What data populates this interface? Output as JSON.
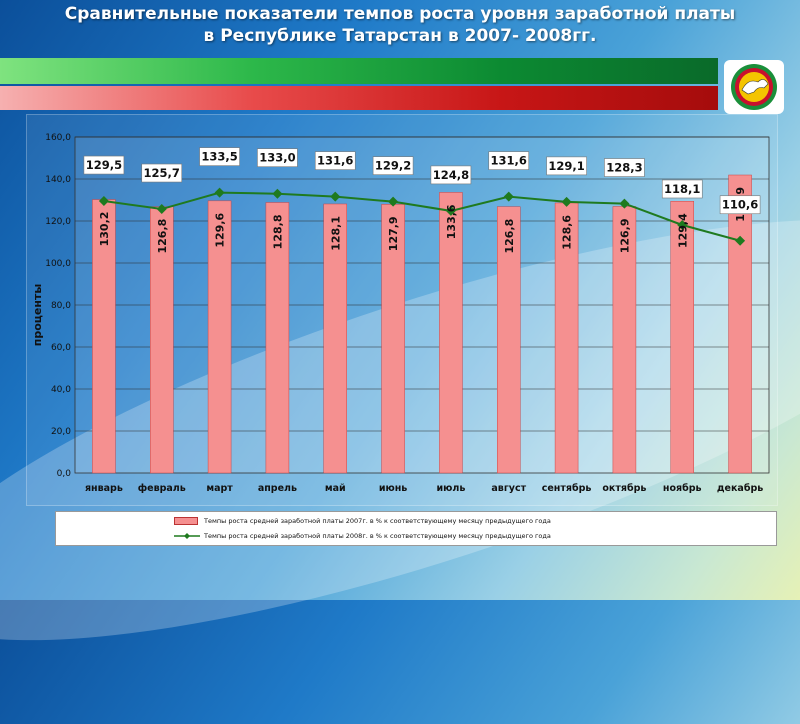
{
  "title": {
    "line1": "Сравнительные показатели темпов роста  уровня заработной платы",
    "line2": "в Республике Татарстан в 2007- 2008гг."
  },
  "emblem": {
    "icon": "tatarstan-emblem-icon"
  },
  "chart_data": {
    "type": "bar",
    "categories": [
      "январь",
      "февраль",
      "март",
      "апрель",
      "май",
      "июнь",
      "июль",
      "август",
      "сентябрь",
      "октябрь",
      "ноябрь",
      "декабрь"
    ],
    "ylabel": "проценты",
    "xlabel": "",
    "ylim": [
      0,
      160
    ],
    "yticks": [
      "0,0",
      "20,0",
      "40,0",
      "60,0",
      "80,0",
      "100,0",
      "120,0",
      "140,0",
      "160,0"
    ],
    "grid": true,
    "legend_position": "bottom",
    "series": [
      {
        "name": "Темпы роста средней заработной платы 2007г.  в %  к соответствующему  месяцу предыдущего года",
        "type": "bar",
        "color": "#f59090",
        "values": [
          130.2,
          126.8,
          129.6,
          128.8,
          128.1,
          127.9,
          133.6,
          126.8,
          128.6,
          126.9,
          129.4,
          141.9
        ],
        "labels": [
          "130,2",
          "126,8",
          "129,6",
          "128,8",
          "128,1",
          "127,9",
          "133,6",
          "126,8",
          "128,6",
          "126,9",
          "129,4",
          "141,9"
        ]
      },
      {
        "name": "Темпы роста средней заработной платы 2008г.  в %  к соответствующему  месяцу предыдущего года",
        "type": "line",
        "color": "#1f7a1f",
        "values": [
          129.5,
          125.7,
          133.5,
          133.0,
          131.6,
          129.2,
          124.8,
          131.6,
          129.1,
          128.3,
          118.1,
          110.6
        ],
        "labels": [
          "129,5",
          "125,7",
          "133,5",
          "133,0",
          "131,6",
          "129,2",
          "124,8",
          "131,6",
          "129,1",
          "128,3",
          "118,1",
          "110,6"
        ]
      }
    ]
  }
}
